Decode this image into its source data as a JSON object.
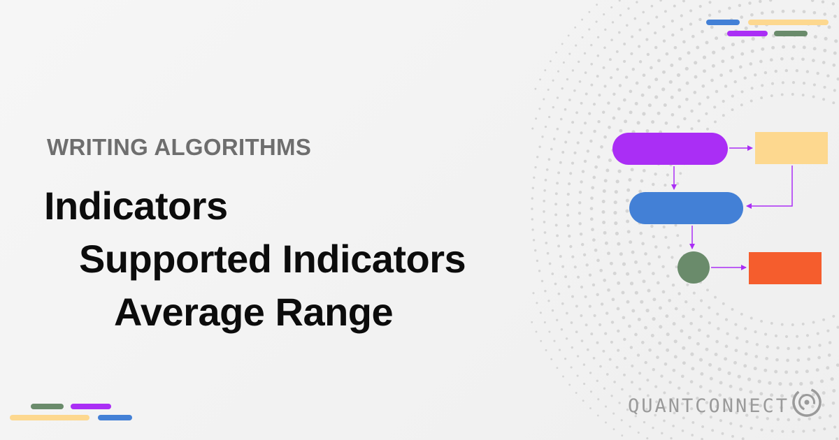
{
  "header": {
    "kicker": "WRITING ALGORITHMS"
  },
  "breadcrumb": {
    "level1": "Indicators",
    "level2": "Supported Indicators",
    "level3": "Average Range"
  },
  "brand": {
    "name": "QUANTCONNECT",
    "logo_icon": "quantconnect-logo-icon"
  },
  "colors": {
    "purple": "#aa2ef5",
    "yellow": "#fdd88f",
    "blue": "#4380d6",
    "green": "#6a8b6b",
    "orange": "#f55d2d"
  }
}
